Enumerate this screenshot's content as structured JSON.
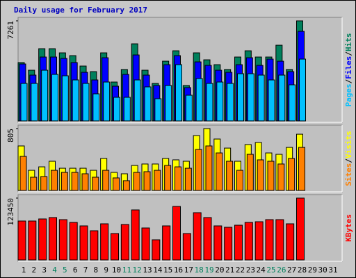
{
  "chart_data": {
    "type": "bar",
    "title": "Daily usage for February 2017",
    "title_color": "#0000c0",
    "categories": [
      "1",
      "2",
      "3",
      "4",
      "5",
      "6",
      "7",
      "8",
      "9",
      "10",
      "11",
      "12",
      "13",
      "14",
      "15",
      "16",
      "17",
      "18",
      "19",
      "20",
      "21",
      "22",
      "23",
      "24",
      "25",
      "26",
      "27",
      "28",
      "29",
      "30",
      "31"
    ],
    "category_colors": [
      "#000000",
      "#000000",
      "#000000",
      "#00805c",
      "#00805c",
      "#000000",
      "#000000",
      "#000000",
      "#000000",
      "#000000",
      "#00805c",
      "#00805c",
      "#000000",
      "#000000",
      "#000000",
      "#000000",
      "#000000",
      "#00805c",
      "#00805c",
      "#000000",
      "#000000",
      "#000000",
      "#000000",
      "#000000",
      "#00805c",
      "#00805c",
      "#000000",
      "#000000",
      "#000000",
      "#000000",
      "#000000"
    ],
    "legend_separator": "/",
    "panels": [
      {
        "ylim": [
          0,
          7261
        ],
        "yticks": [
          7261
        ],
        "series": [
          {
            "name": "Hits",
            "color": "#00805c",
            "values": [
              4234,
              3680,
              5242,
              5242,
              4940,
              4738,
              3982,
              3578,
              4940,
              2822,
              3730,
              5595,
              3680,
              2722,
              4335,
              5090,
              2570,
              4940,
              4435,
              4082,
              3730,
              4637,
              5090,
              4637,
              4637,
              5494,
              3730,
              7261,
              null,
              null,
              null
            ]
          },
          {
            "name": "Files",
            "color": "#0000ff",
            "values": [
              4133,
              3326,
              4637,
              4637,
              4536,
              4234,
              3528,
              2974,
              4586,
              2520,
              3377,
              4788,
              3326,
              2570,
              4082,
              4738,
              2419,
              4284,
              4032,
              3679,
              3528,
              4082,
              4586,
              4032,
              4486,
              4334,
              3578,
              6502,
              null,
              null,
              null
            ]
          },
          {
            "name": "Pages",
            "color": "#00c0ff",
            "values": [
              2722,
              2722,
              3679,
              3377,
              3276,
              2974,
              2722,
              1966,
              2822,
              1714,
              1714,
              2974,
              2470,
              1613,
              2570,
              4082,
              1865,
              3074,
              2722,
              2822,
              2722,
              3427,
              3427,
              3326,
              2974,
              3326,
              2621,
              4486,
              null,
              null,
              null
            ]
          }
        ]
      },
      {
        "ylim": [
          0,
          805
        ],
        "yticks": [
          805
        ],
        "series": [
          {
            "name": "Visits",
            "color": "#ffff00",
            "values": [
              579,
              262,
              307,
              380,
              289,
              289,
              289,
              262,
              416,
              235,
              217,
              325,
              344,
              344,
              416,
              398,
              380,
              714,
              805,
              669,
              551,
              380,
              597,
              624,
              488,
              470,
              560,
              732,
              null,
              null,
              null
            ]
          },
          {
            "name": "Sites",
            "color": "#ff8000",
            "values": [
              443,
              172,
              181,
              262,
              235,
              235,
              217,
              172,
              262,
              163,
              127,
              235,
              244,
              262,
              325,
              307,
              289,
              533,
              579,
              488,
              380,
              262,
              470,
              398,
              380,
              344,
              416,
              560,
              null,
              null,
              null
            ]
          }
        ]
      },
      {
        "ylim": [
          0,
          123450
        ],
        "yticks": [
          123450
        ],
        "series": [
          {
            "name": "KBytes",
            "color": "#ff0000",
            "values": [
              77672,
              77672,
              81833,
              84607,
              80446,
              74898,
              67963,
              58254,
              72124,
              52706,
              70737,
              99864,
              63802,
              40223,
              67963,
              106799,
              52706,
              94316,
              84607,
              67963,
              65189,
              69350,
              74898,
              76285,
              80446,
              80446,
              72124,
              123450,
              null,
              null,
              null
            ]
          }
        ]
      }
    ]
  }
}
